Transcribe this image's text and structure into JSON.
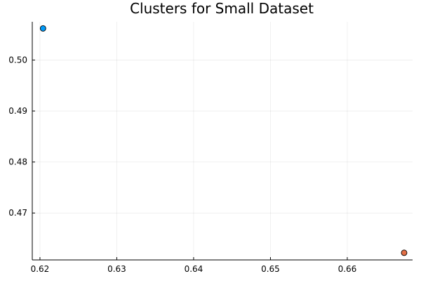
{
  "chart_data": {
    "type": "scatter",
    "title": "Clusters for Small Dataset",
    "xlabel": "",
    "ylabel": "",
    "xlim": [
      0.619,
      0.6685
    ],
    "ylim": [
      0.4608,
      0.5075
    ],
    "x_ticks": [
      0.62,
      0.63,
      0.64,
      0.65,
      0.66
    ],
    "y_ticks": [
      0.47,
      0.48,
      0.49,
      0.5
    ],
    "x_tick_labels": [
      "0.62",
      "0.63",
      "0.64",
      "0.65",
      "0.66"
    ],
    "y_tick_labels": [
      "0.47",
      "0.48",
      "0.49",
      "0.50"
    ],
    "grid": true,
    "legend": "none",
    "series": [
      {
        "color": "#009af9",
        "points": [
          [
            0.6204,
            0.5062
          ]
        ]
      },
      {
        "color": "#e26f46",
        "points": [
          [
            0.6674,
            0.4622
          ]
        ]
      }
    ]
  }
}
